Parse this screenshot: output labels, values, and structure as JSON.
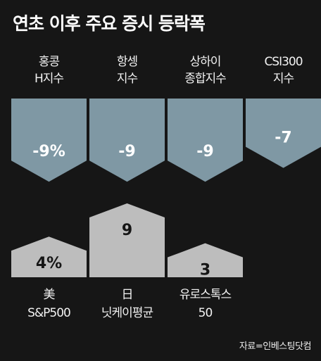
{
  "title": "연초 이후 주요 증시 등락폭",
  "source": "자료=인베스팅닷컴",
  "colors": {
    "negative": "#7f98a4",
    "positive": "#bdbdbd",
    "background": "#161616"
  },
  "chart_data": [
    {
      "type": "bar",
      "categories": [
        [
          "홍콩",
          "H지수"
        ],
        [
          "항셍",
          "지수"
        ],
        [
          "상하이",
          "종합지수"
        ],
        [
          "CSI300",
          "지수"
        ]
      ],
      "values": [
        -9,
        -9,
        -9,
        -7
      ],
      "value_labels": [
        "-9%",
        "-9",
        "-9",
        "-7"
      ],
      "ylim": [
        -9,
        0
      ]
    },
    {
      "type": "bar",
      "categories": [
        [
          "美",
          "S&P500"
        ],
        [
          "日",
          "닛케이평균"
        ],
        [
          "유로스톡스",
          "50"
        ]
      ],
      "values": [
        4,
        9,
        3
      ],
      "value_labels": [
        "4%",
        "9",
        "3"
      ],
      "ylim": [
        0,
        9
      ]
    }
  ]
}
